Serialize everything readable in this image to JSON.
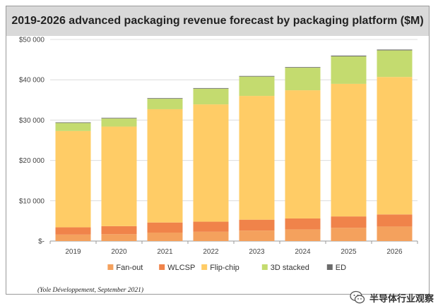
{
  "title": "2019-2026 advanced packaging revenue forecast by packaging platform ($M)",
  "source": "(Yole Développement, September 2021)",
  "watermark": "半导体行业观察",
  "chart_data": {
    "type": "bar",
    "stacked": true,
    "categories": [
      "2019",
      "2020",
      "2021",
      "2022",
      "2023",
      "2024",
      "2025",
      "2026"
    ],
    "ylim": [
      0,
      50000
    ],
    "yticks": [
      0,
      10000,
      20000,
      30000,
      40000,
      50000
    ],
    "ytick_labels": [
      "$-",
      "$10 000",
      "$20 000",
      "$30 000",
      "$40 000",
      "$50 000"
    ],
    "grid": true,
    "legend_position": "bottom",
    "series": [
      {
        "name": "Fan-out",
        "color": "#f4a15d",
        "values": [
          1600,
          1700,
          2100,
          2300,
          2600,
          2900,
          3300,
          3600
        ]
      },
      {
        "name": "WLCSP",
        "color": "#f0834a",
        "values": [
          1800,
          2000,
          2500,
          2500,
          2700,
          2700,
          2800,
          3000
        ]
      },
      {
        "name": "Flip-chip",
        "color": "#ffcc66",
        "values": [
          23900,
          24700,
          28100,
          29100,
          30700,
          31800,
          32900,
          34100
        ]
      },
      {
        "name": "3D stacked",
        "color": "#c4db6f",
        "values": [
          2000,
          2000,
          2600,
          3900,
          4800,
          5600,
          6800,
          6600
        ]
      },
      {
        "name": "ED",
        "color": "#6b6b6b",
        "values": [
          150,
          150,
          150,
          150,
          150,
          150,
          200,
          200
        ]
      }
    ]
  }
}
